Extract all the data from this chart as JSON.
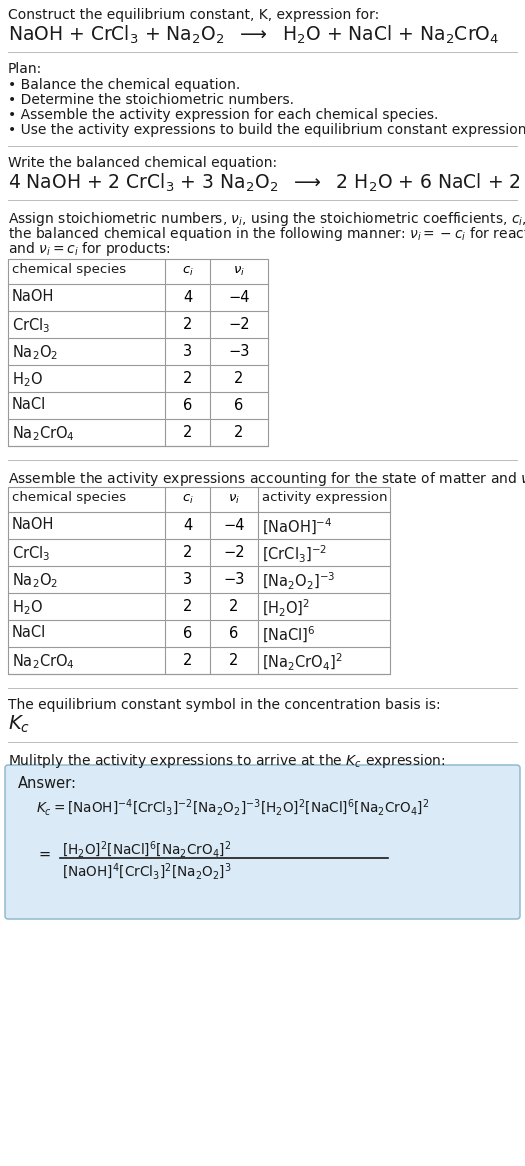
{
  "bg_color": "#ffffff",
  "text_color": "#1a1a1a",
  "title_line1": "Construct the equilibrium constant, K, expression for:",
  "plan_label": "Plan:",
  "plan_items": [
    "• Balance the chemical equation.",
    "• Determine the stoichiometric numbers.",
    "• Assemble the activity expression for each chemical species.",
    "• Use the activity expressions to build the equilibrium constant expression."
  ],
  "balanced_label": "Write the balanced chemical equation:",
  "kc_label": "The equilibrium constant symbol in the concentration basis is:",
  "kc_symbol": "$K_c$",
  "multiply_label": "Mulitply the activity expressions to arrive at the $K_c$ expression:",
  "answer_label": "Answer:",
  "answer_box_color": "#daeaf6",
  "answer_box_border": "#8ab4cc",
  "table1_headers": [
    "chemical species",
    "$c_i$",
    "$\\nu_i$"
  ],
  "table1_data": [
    [
      "NaOH",
      "4",
      "−4"
    ],
    [
      "CrCl$_3$",
      "2",
      "−2"
    ],
    [
      "Na$_2$O$_2$",
      "3",
      "−3"
    ],
    [
      "H$_2$O",
      "2",
      "2"
    ],
    [
      "NaCl",
      "6",
      "6"
    ],
    [
      "Na$_2$CrO$_4$",
      "2",
      "2"
    ]
  ],
  "table2_headers": [
    "chemical species",
    "$c_i$",
    "$\\nu_i$",
    "activity expression"
  ],
  "table2_data": [
    [
      "NaOH",
      "4",
      "−4",
      "[NaOH]$^{-4}$"
    ],
    [
      "CrCl$_3$",
      "2",
      "−2",
      "[CrCl$_3$]$^{-2}$"
    ],
    [
      "Na$_2$O$_2$",
      "3",
      "−3",
      "[Na$_2$O$_2$]$^{-3}$"
    ],
    [
      "H$_2$O",
      "2",
      "2",
      "[H$_2$O]$^{2}$"
    ],
    [
      "NaCl",
      "6",
      "6",
      "[NaCl]$^{6}$"
    ],
    [
      "Na$_2$CrO$_4$",
      "2",
      "2",
      "[Na$_2$CrO$_4$]$^{2}$"
    ]
  ]
}
